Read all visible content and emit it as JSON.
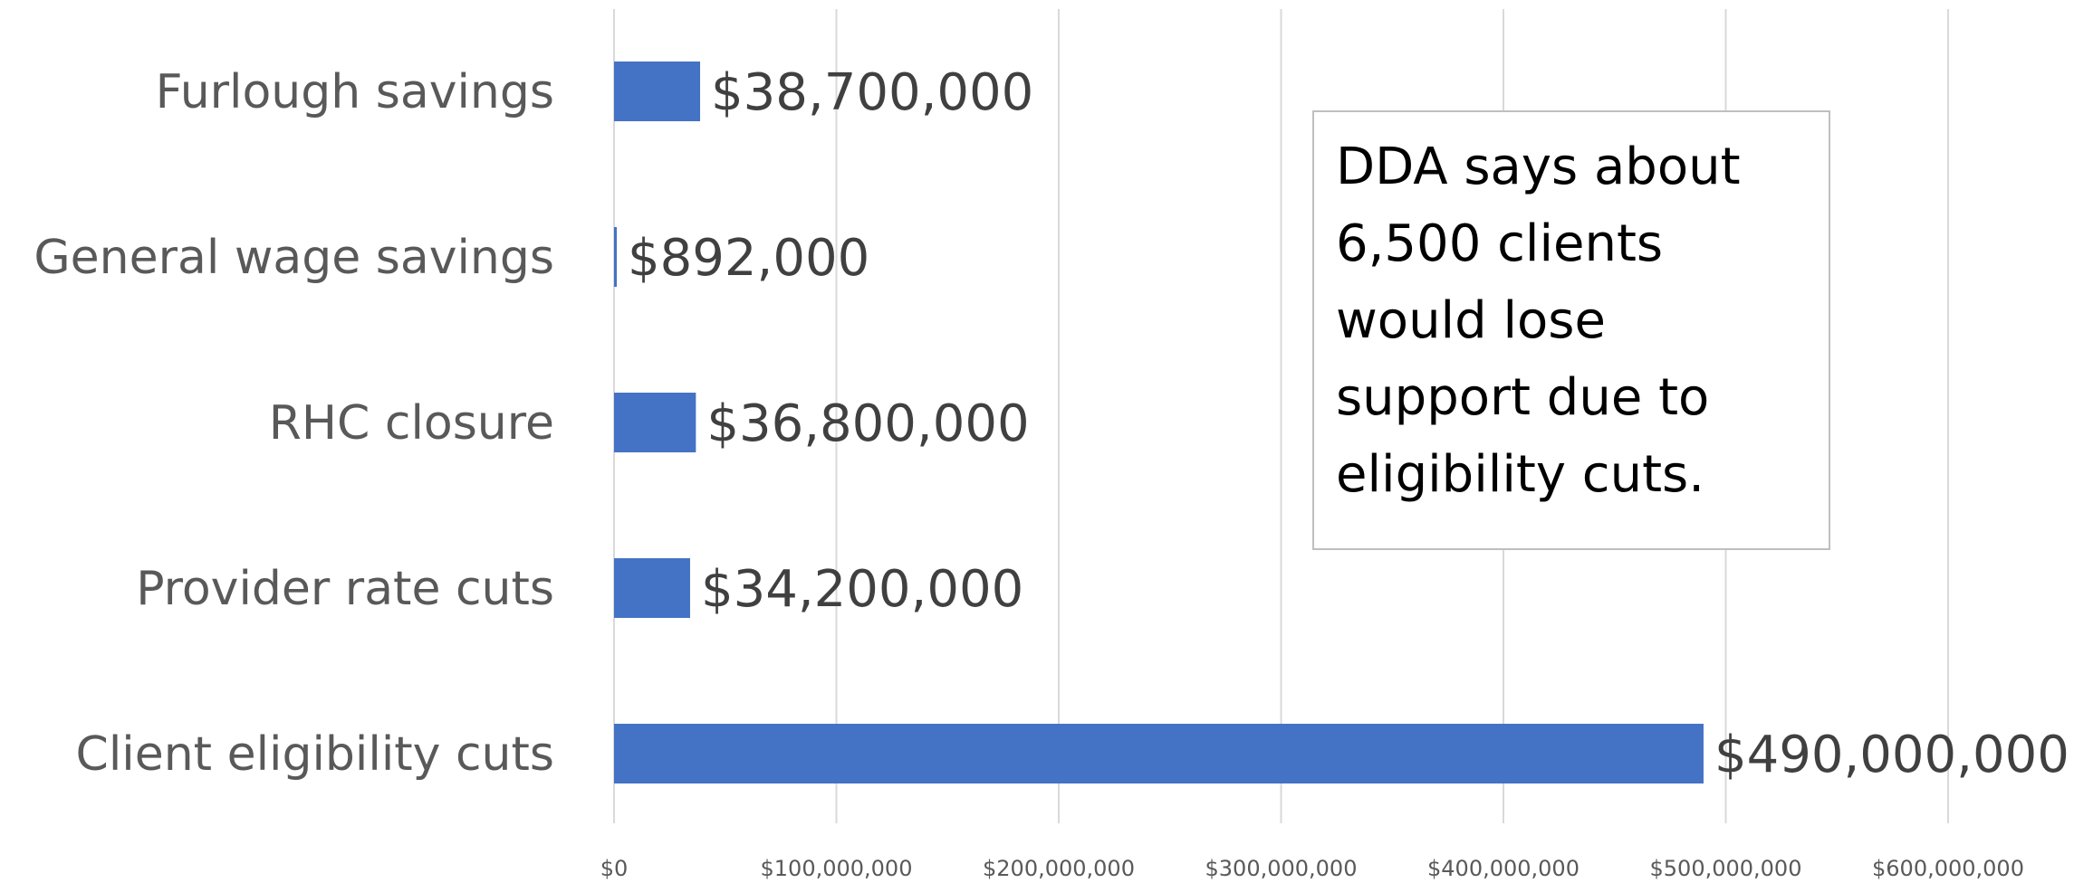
{
  "chart_data": {
    "type": "bar",
    "orientation": "horizontal",
    "categories": [
      "Furlough savings",
      "General wage savings",
      "RHC closure",
      "Provider rate cuts",
      "Client eligibility cuts"
    ],
    "values": [
      38700000,
      892000,
      36800000,
      34200000,
      490000000
    ],
    "data_labels": [
      "$38,700,000",
      "$892,000",
      "$36,800,000",
      "$34,200,000",
      "$490,000,000"
    ],
    "xlim": [
      0,
      600000000
    ],
    "x_ticks": [
      0,
      100000000,
      200000000,
      300000000,
      400000000,
      500000000,
      600000000
    ],
    "x_tick_labels": [
      "$0",
      "$100,000,000",
      "$200,000,000",
      "$300,000,000",
      "$400,000,000",
      "$500,000,000",
      "$600,000,000"
    ],
    "title": "",
    "xlabel": "",
    "ylabel": "",
    "grid": "vertical",
    "legend": "none",
    "bar_color": "#4472c4",
    "annotation": {
      "lines": [
        "DDA says about",
        "6,500 clients",
        "would lose",
        "support due to",
        "eligibility cuts."
      ]
    }
  }
}
